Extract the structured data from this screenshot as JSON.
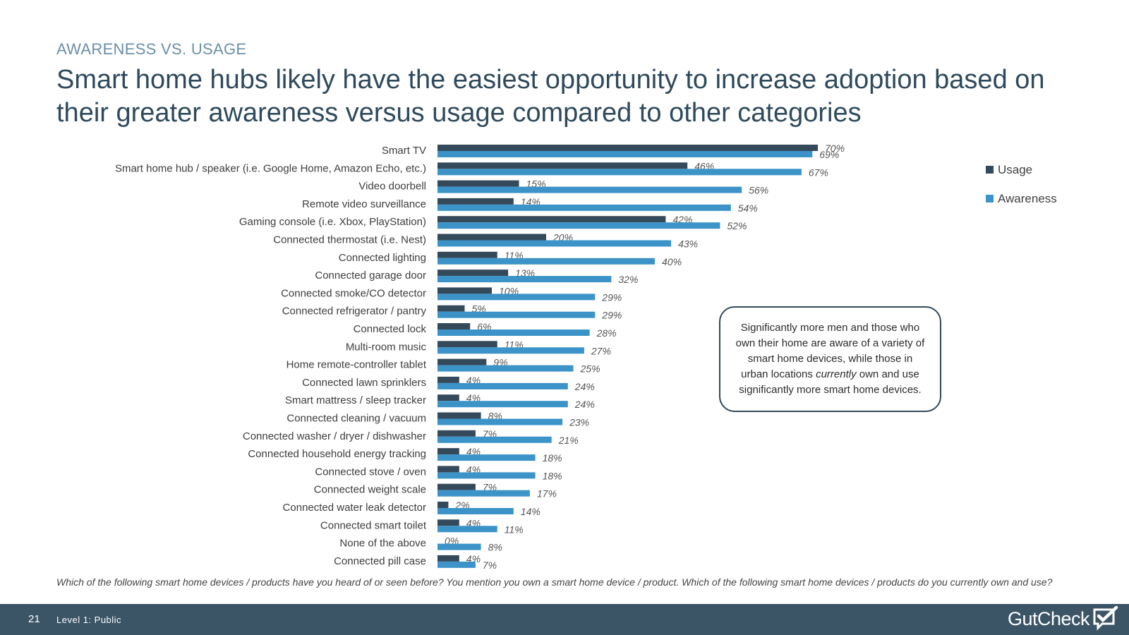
{
  "header": {
    "eyebrow": "AWARENESS VS. USAGE",
    "headline": "Smart home hubs likely have the easiest opportunity to increase adoption based on their greater awareness versus usage compared to other categories"
  },
  "chart_data": {
    "type": "bar",
    "orientation": "horizontal",
    "categories": [
      "Smart TV",
      "Smart home hub / speaker (i.e. Google Home, Amazon Echo, etc.)",
      "Video doorbell",
      "Remote video surveillance",
      "Gaming console (i.e. Xbox, PlayStation)",
      "Connected thermostat (i.e. Nest)",
      "Connected lighting",
      "Connected garage door",
      "Connected smoke/CO detector",
      "Connected refrigerator / pantry",
      "Connected lock",
      "Multi-room music",
      "Home remote-controller tablet",
      "Connected lawn sprinklers",
      "Smart mattress / sleep tracker",
      "Connected cleaning / vacuum",
      "Connected washer / dryer / dishwasher",
      "Connected household energy tracking",
      "Connected stove / oven",
      "Connected weight scale",
      "Connected water leak detector",
      "Connected smart toilet",
      "None of the above",
      "Connected pill case"
    ],
    "series": [
      {
        "name": "Usage",
        "color": "#34495a",
        "values": [
          70,
          46,
          15,
          14,
          42,
          20,
          11,
          13,
          10,
          5,
          6,
          11,
          9,
          4,
          4,
          8,
          7,
          4,
          4,
          7,
          2,
          4,
          0,
          4
        ]
      },
      {
        "name": "Awareness",
        "color": "#3c93c8",
        "values": [
          69,
          67,
          56,
          54,
          52,
          43,
          40,
          32,
          29,
          29,
          28,
          27,
          25,
          24,
          24,
          23,
          21,
          18,
          18,
          17,
          14,
          11,
          8,
          7
        ]
      }
    ],
    "value_suffix": "%",
    "xlim": [
      0,
      100
    ],
    "grid": false,
    "legend_position": "right"
  },
  "callout": {
    "before": "Significantly more men and those who own their home are aware of a variety of smart home devices, while those in urban locations ",
    "emphasis": "currently",
    "after": " own and use significantly more smart home devices."
  },
  "footnote": "Which of the following smart home devices / products have you heard of or seen before?  You mention you own a smart home device / product. Which of the following smart home devices / products do you currently own and use?",
  "footer": {
    "page_number": "21",
    "classification": "Level 1: Public",
    "logo_text": "GutCheck"
  }
}
